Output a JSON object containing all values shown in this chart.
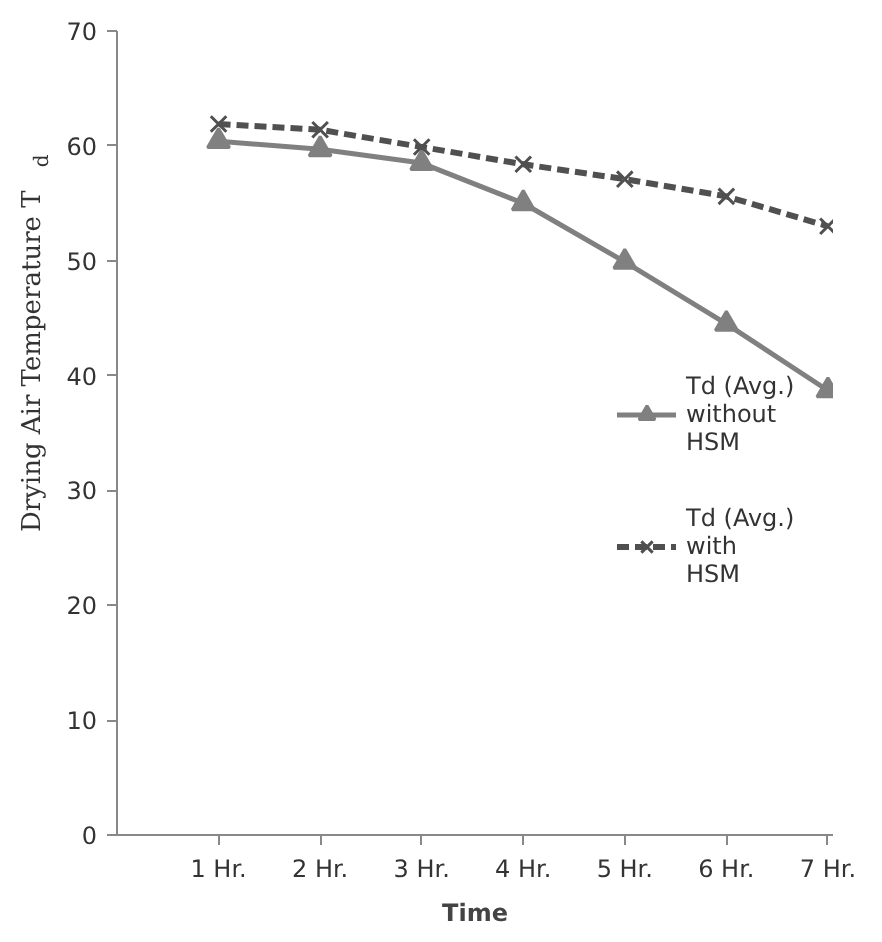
{
  "chart_data": {
    "type": "line",
    "xlabel": "Time",
    "ylabel": "Drying Air Temperature T$_{d}$",
    "categories": [
      "1 Hr.",
      "2 Hr.",
      "3 Hr.",
      "4 Hr.",
      "5 Hr.",
      "6 Hr.",
      "7 Hr."
    ],
    "ylim": [
      0,
      70
    ],
    "yticks": [
      0,
      10,
      20,
      30,
      40,
      50,
      60,
      70
    ],
    "grid": false,
    "legend": "right",
    "series": [
      {
        "name": "Td (Avg.) without HSM",
        "color": "#808080",
        "marker": "triangle",
        "line_style": "solid",
        "values": [
          60.4,
          59.7,
          58.5,
          55,
          49.9,
          44.5,
          38.7
        ]
      },
      {
        "name": "Td (Avg.) with HSM",
        "color": "#505050",
        "marker": "cross",
        "line_style": "dashed",
        "values": [
          61.9,
          61.4,
          59.9,
          58.4,
          57.1,
          55.6,
          53
        ]
      }
    ]
  }
}
